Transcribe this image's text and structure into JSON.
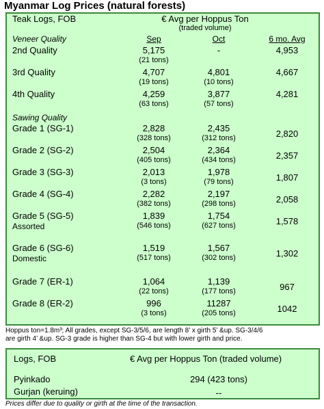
{
  "title": "Myanmar Log Prices (natural forests)",
  "main": {
    "label": "Teak Logs, FOB",
    "currency_heading": "€ Avg per Hoppus Ton",
    "traded_volume": "(traded volume)",
    "veneer_heading": "Veneer Quality",
    "sawing_heading": "Sawing Quality",
    "columns": [
      "Sep",
      "Oct",
      "6 mo. Avg"
    ],
    "rows": [
      {
        "grade": "2nd Quality",
        "sub": "",
        "sep": "5,175",
        "sep_vol": "(21 tons)",
        "oct": "-",
        "oct_vol": "",
        "avg": "4,953"
      },
      {
        "grade": "3rd Quality",
        "sub": "",
        "sep": "4,707",
        "sep_vol": "(19 tons)",
        "oct": "4,801",
        "oct_vol": "(10 tons)",
        "avg": "4,667"
      },
      {
        "grade": "4th Quality",
        "sub": "",
        "sep": "4,259",
        "sep_vol": "(63 tons)",
        "oct": "3,877",
        "oct_vol": "(57 tons)",
        "avg": "4,281"
      },
      {
        "grade": "Grade 1 (SG-1)",
        "sub": "",
        "sep": "2,828",
        "sep_vol": "(328 tons)",
        "oct": "2,435",
        "oct_vol": "(312 tons)",
        "avg": "2,820"
      },
      {
        "grade": "Grade 2 (SG-2)",
        "sub": "",
        "sep": "2,504",
        "sep_vol": "(405 tons)",
        "oct": "2,364",
        "oct_vol": "(434 tons)",
        "avg": "2,357"
      },
      {
        "grade": "Grade 3 (SG-3)",
        "sub": "",
        "sep": "2,013",
        "sep_vol": "(3 tons)",
        "oct": "1,978",
        "oct_vol": "(79 tons)",
        "avg": "1,807"
      },
      {
        "grade": "Grade 4 (SG-4)",
        "sub": "",
        "sep": "2,282",
        "sep_vol": "(382 tons)",
        "oct": "2,197",
        "oct_vol": "(298 tons)",
        "avg": "2,058"
      },
      {
        "grade": "Grade 5 (SG-5)",
        "sub": "Assorted",
        "sep": "1,839",
        "sep_vol": "(546 tons)",
        "oct": "1,754",
        "oct_vol": "(627 tons)",
        "avg": "1,578"
      },
      {
        "grade": "Grade 6 (SG-6)",
        "sub": "Domestic",
        "sep": "1,519",
        "sep_vol": "(517 tons)",
        "oct": "1,567",
        "oct_vol": "(302 tons)",
        "avg": "1,302"
      },
      {
        "grade": "Grade 7 (ER-1)",
        "sub": "",
        "sep": "1,064",
        "sep_vol": "(22 tons)",
        "oct": "1,139",
        "oct_vol": "(177 tons)",
        "avg": "967"
      },
      {
        "grade": "Grade 8 (ER-2)",
        "sub": "",
        "sep": "996",
        "sep_vol": "(3 tons)",
        "oct": "11287",
        "oct_vol": "(205 tons)",
        "avg": "1042"
      }
    ]
  },
  "footnote_line1": "Hoppus ton=1.8m³; All grades, except SG-3/5/6, are length 8’ x girth 5’ &up. SG-3/4/6",
  "footnote_line2": "are girth 4’ &up. SG-3 grade is higher than SG-4 but with lower girth and price.",
  "logs": {
    "label": "Logs, FOB",
    "heading": "€ Avg per Hoppus Ton (traded volume)",
    "rows": [
      {
        "name": "Pyinkado",
        "value": "294 (423 tons)"
      },
      {
        "name": "Gurjan (keruing)",
        "value": "--"
      }
    ]
  },
  "bottom_note": "Prices differ due to quality or girth at the time of the transaction."
}
